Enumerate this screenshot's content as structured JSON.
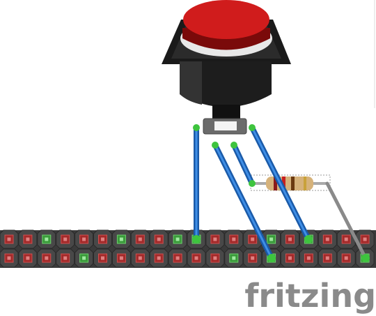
{
  "logo": "fritzing"
}
